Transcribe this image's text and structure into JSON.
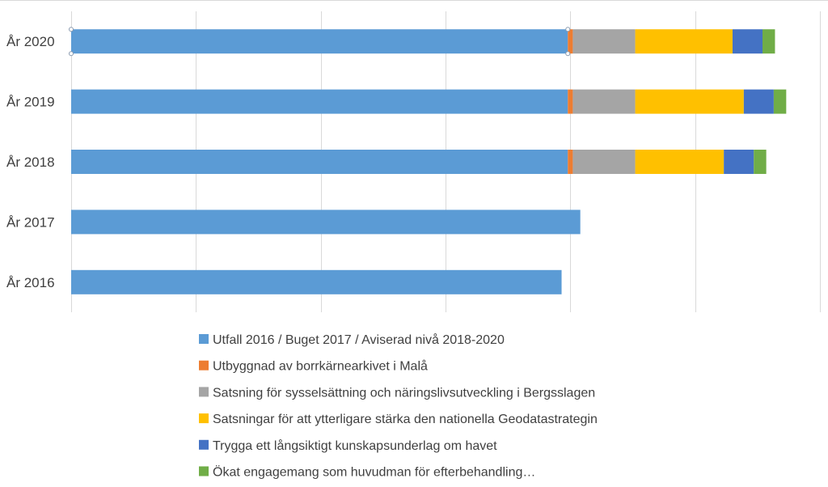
{
  "chart_data": {
    "type": "bar",
    "orientation": "horizontal",
    "stacked": true,
    "categories": [
      "År 2016",
      "År 2017",
      "År 2018",
      "År 2019",
      "År 2020"
    ],
    "series": [
      {
        "name": "Utfall 2016 / Buget 2017 / Aviserad nivå 2018-2020",
        "color": "#5B9BD5",
        "values": [
          393,
          408,
          398,
          398,
          398
        ]
      },
      {
        "name": "Utbyggnad av borrkärnearkivet i Malå",
        "color": "#ED7D31",
        "values": [
          0,
          0,
          4,
          4,
          4
        ]
      },
      {
        "name": "Satsning för sysselsättning och näringslivsutveckling i Bergsslagen",
        "color": "#A5A5A5",
        "values": [
          0,
          0,
          50,
          50,
          50
        ]
      },
      {
        "name": "Satsningar för att ytterligare stärka den nationella Geodatastrategin",
        "color": "#FFC000",
        "values": [
          0,
          0,
          71,
          87,
          78
        ]
      },
      {
        "name": "Trygga ett långsiktigt kunskapsunderlag om havet",
        "color": "#4472C4",
        "values": [
          0,
          0,
          24,
          24,
          24
        ]
      },
      {
        "name": "Ökat engagemang som huvudman för efterbehandling…",
        "color": "#70AD47",
        "values": [
          0,
          0,
          10,
          10,
          10
        ]
      }
    ],
    "xlim": [
      0,
      600
    ],
    "x_gridlines": [
      0,
      100,
      200,
      300,
      400,
      500,
      600
    ],
    "grid": true,
    "legend_position": "bottom"
  }
}
